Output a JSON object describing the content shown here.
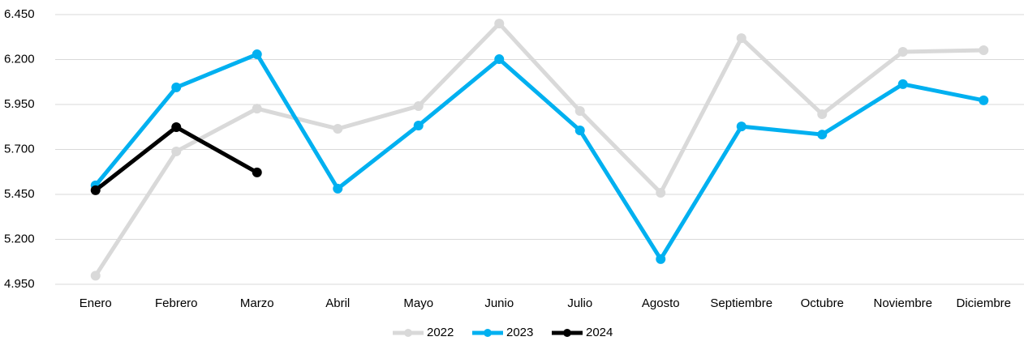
{
  "chart_data": {
    "type": "line",
    "categories": [
      "Enero",
      "Febrero",
      "Marzo",
      "Abril",
      "Mayo",
      "Junio",
      "Julio",
      "Agosto",
      "Septiembre",
      "Octubre",
      "Noviembre",
      "Diciembre"
    ],
    "series": [
      {
        "name": "2022",
        "color": "#d9d9d9",
        "values": [
          4998,
          5689,
          5927,
          5815,
          5941,
          6400,
          5914,
          5459,
          6319,
          5896,
          6243,
          6252
        ]
      },
      {
        "name": "2023",
        "color": "#00b0f0",
        "values": [
          5500,
          6045,
          6229,
          5482,
          5833,
          6202,
          5806,
          5090,
          5828,
          5783,
          6063,
          5973
        ]
      },
      {
        "name": "2024",
        "color": "#000000",
        "values": [
          5473,
          5824,
          5572,
          null,
          null,
          null,
          null,
          null,
          null,
          null,
          null,
          null
        ]
      }
    ],
    "ylim": [
      4950,
      6450
    ],
    "yticks": [
      {
        "value": 4950,
        "label": "4.950"
      },
      {
        "value": 5200,
        "label": "5.200"
      },
      {
        "value": 5450,
        "label": "5.450"
      },
      {
        "value": 5700,
        "label": "5.700"
      },
      {
        "value": 5950,
        "label": "5.950"
      },
      {
        "value": 6200,
        "label": "6.200"
      },
      {
        "value": 6450,
        "label": "6.450"
      }
    ],
    "grid": true,
    "legend": "bottom"
  }
}
